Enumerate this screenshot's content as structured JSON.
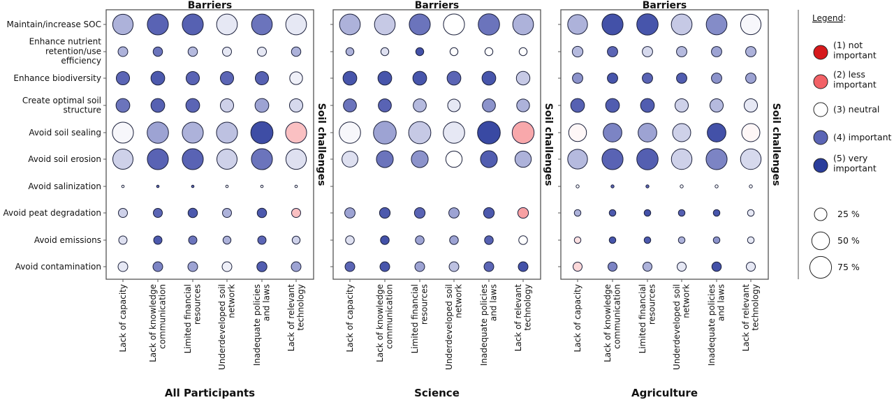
{
  "chart_data": {
    "type": "scatter",
    "subtype": "bubble-matrix",
    "x_title": "Barriers",
    "y_title": "Soil challenges",
    "rows": [
      "Maintain/increase SOC",
      "Enhance nutrient\nretention/use\nefficiency",
      "Enhance biodiversity",
      "Create optimal soil\nstructure",
      "Avoid soil sealing",
      "Avoid soil erosion",
      "Avoid salinization",
      "Avoid peat degradation",
      "Avoid emissions",
      "Avoid contamination"
    ],
    "columns": [
      "Lack of capacity",
      "Lack of knowledge\ncommunication",
      "Limited financial\nresources",
      "Underdeveloped soil\nnetwork",
      "Inadequate policies\nand laws",
      "Lack of relevant\ntechnology"
    ],
    "color_scale": {
      "1": "#d7191c",
      "2": "#f26166",
      "3": "#ffffff",
      "4": "#5b65b5",
      "5": "#2a3d9b"
    },
    "size_meaning": "percent",
    "panels": [
      {
        "title": "All Participants",
        "score": [
          [
            3.5,
            4.05,
            4.1,
            3.15,
            3.9,
            3.15
          ],
          [
            3.5,
            3.9,
            3.45,
            3.15,
            3.15,
            3.5
          ],
          [
            4.0,
            4.3,
            4.05,
            4.0,
            4.1,
            3.1
          ],
          [
            3.9,
            4.1,
            4.0,
            3.3,
            3.6,
            3.25
          ],
          [
            3.05,
            3.6,
            3.5,
            3.4,
            4.6,
            2.6
          ],
          [
            3.3,
            4.05,
            4.05,
            3.3,
            3.9,
            3.2
          ],
          [
            3.0,
            4.0,
            4.0,
            3.0,
            3.0,
            3.0
          ],
          [
            3.3,
            4.0,
            4.3,
            3.5,
            4.3,
            2.6
          ],
          [
            3.2,
            4.3,
            3.9,
            3.5,
            4.0,
            3.3
          ],
          [
            3.15,
            3.8,
            3.6,
            3.1,
            4.2,
            3.6
          ]
        ],
        "percent": [
          [
            66,
            70,
            70,
            68,
            68,
            68
          ],
          [
            15,
            14,
            14,
            13,
            13,
            14
          ],
          [
            28,
            30,
            28,
            28,
            28,
            26
          ],
          [
            30,
            30,
            30,
            28,
            30,
            28
          ],
          [
            70,
            72,
            70,
            70,
            78,
            70
          ],
          [
            65,
            70,
            70,
            65,
            70,
            66
          ],
          [
            1,
            1,
            1,
            1,
            1,
            1
          ],
          [
            13,
            13,
            14,
            13,
            14,
            13
          ],
          [
            11,
            11,
            11,
            10,
            11,
            10
          ],
          [
            15,
            15,
            15,
            15,
            16,
            15
          ]
        ]
      },
      {
        "title": "Science",
        "score": [
          [
            3.5,
            3.35,
            3.9,
            3.0,
            3.9,
            3.5
          ],
          [
            3.5,
            3.2,
            4.5,
            3.0,
            3.0,
            3.0
          ],
          [
            4.4,
            4.4,
            4.4,
            4.0,
            4.4,
            3.35
          ],
          [
            3.9,
            4.05,
            3.45,
            3.15,
            3.7,
            3.5
          ],
          [
            3.05,
            3.6,
            3.35,
            3.15,
            4.7,
            2.45
          ],
          [
            3.2,
            3.9,
            3.7,
            3.0,
            4.2,
            3.5
          ],
          [
            3.0,
            3.0,
            3.0,
            3.0,
            3.0,
            3.0
          ],
          [
            3.6,
            4.3,
            4.05,
            3.6,
            4.3,
            2.4
          ],
          [
            3.2,
            4.5,
            3.6,
            3.6,
            4.1,
            3.0
          ],
          [
            4.0,
            4.4,
            3.6,
            3.4,
            4.0,
            4.5
          ]
        ],
        "percent": [
          [
            68,
            68,
            70,
            70,
            72,
            68
          ],
          [
            10,
            10,
            10,
            10,
            10,
            10
          ],
          [
            30,
            30,
            30,
            30,
            30,
            29
          ],
          [
            27,
            27,
            27,
            25,
            27,
            26
          ],
          [
            72,
            82,
            78,
            72,
            82,
            76
          ],
          [
            40,
            45,
            45,
            42,
            45,
            42
          ],
          [
            0,
            0,
            0,
            0,
            0,
            0
          ],
          [
            17,
            18,
            18,
            17,
            18,
            18
          ],
          [
            12,
            12,
            12,
            12,
            12,
            12
          ],
          [
            15,
            15,
            15,
            15,
            15,
            15
          ]
        ]
      },
      {
        "title": "Agriculture",
        "score": [
          [
            3.5,
            4.5,
            4.4,
            3.35,
            3.75,
            3.05
          ],
          [
            3.45,
            4.0,
            3.25,
            3.45,
            3.6,
            3.5
          ],
          [
            3.7,
            4.4,
            4.05,
            4.2,
            3.7,
            3.6
          ],
          [
            4.1,
            4.2,
            4.2,
            3.3,
            3.45,
            3.15
          ],
          [
            2.95,
            3.8,
            3.6,
            3.3,
            4.5,
            2.95
          ],
          [
            3.45,
            4.05,
            4.15,
            3.3,
            3.8,
            3.25
          ],
          [
            3.0,
            4.0,
            4.0,
            3.0,
            3.0,
            3.0
          ],
          [
            3.5,
            4.3,
            4.5,
            4.15,
            4.4,
            3.15
          ],
          [
            2.8,
            4.4,
            4.3,
            3.5,
            3.7,
            3.15
          ],
          [
            2.75,
            3.8,
            3.5,
            3.15,
            4.5,
            3.15
          ]
        ],
        "percent": [
          [
            62,
            70,
            72,
            68,
            68,
            66
          ],
          [
            18,
            17,
            17,
            17,
            17,
            17
          ],
          [
            17,
            17,
            17,
            17,
            17,
            17
          ],
          [
            30,
            30,
            30,
            28,
            28,
            28
          ],
          [
            50,
            55,
            55,
            52,
            55,
            52
          ],
          [
            62,
            70,
            72,
            67,
            70,
            67
          ],
          [
            1.5,
            1.5,
            1.5,
            1.5,
            1.5,
            1.5
          ],
          [
            7,
            7,
            7,
            7,
            7,
            7
          ],
          [
            7,
            7,
            7,
            7,
            7,
            7
          ],
          [
            13,
            13,
            13,
            13,
            14,
            13
          ]
        ]
      }
    ],
    "legend": {
      "title": "Legend",
      "colors": [
        {
          "score": 1,
          "label": "(1) not\nimportant"
        },
        {
          "score": 2,
          "label": "(2) less\nimportant"
        },
        {
          "score": 3,
          "label": "(3) neutral"
        },
        {
          "score": 4,
          "label": "(4) important"
        },
        {
          "score": 5,
          "label": "(5) very\nimportant"
        }
      ],
      "sizes": [
        {
          "percent": 25,
          "label": "25 %"
        },
        {
          "percent": 50,
          "label": "50 %"
        },
        {
          "percent": 75,
          "label": "75 %"
        }
      ],
      "placement": "right"
    }
  }
}
